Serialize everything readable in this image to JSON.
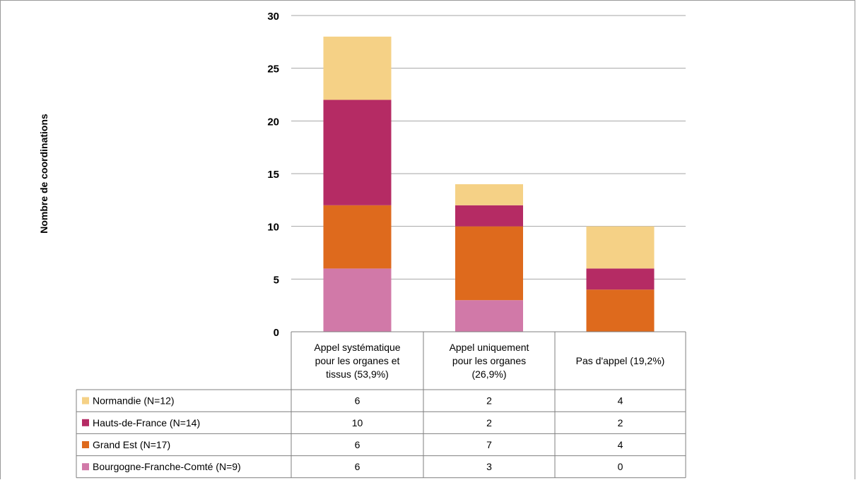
{
  "chart_data": {
    "type": "bar",
    "stacked": true,
    "ylabel": "Nombre de coordinations",
    "ylim": [
      0,
      30
    ],
    "yticks": [
      0,
      5,
      10,
      15,
      20,
      25,
      30
    ],
    "grid": true,
    "legend": "data-table",
    "categories": [
      "Appel systématique pour les organes et tissus (53,9%)",
      "Appel uniquement pour les organes (26,9%)",
      "Pas d'appel (19,2%)"
    ],
    "category_lines": [
      [
        "Appel systématique",
        "pour les organes et",
        "tissus (53,9%)"
      ],
      [
        "Appel uniquement",
        "pour les organes",
        "(26,9%)"
      ],
      [
        "Pas d'appel (19,2%)"
      ]
    ],
    "series": [
      {
        "name": "Bourgogne-Franche-Comté (N=9)",
        "color": "#d179a8",
        "values": [
          6,
          3,
          0
        ]
      },
      {
        "name": "Grand Est (N=17)",
        "color": "#de6a1d",
        "values": [
          6,
          7,
          4
        ]
      },
      {
        "name": "Hauts-de-France (N=14)",
        "color": "#b52b64",
        "values": [
          10,
          2,
          2
        ]
      },
      {
        "name": "Normandie (N=12)",
        "color": "#f5d186",
        "values": [
          6,
          2,
          4
        ]
      }
    ],
    "table_order": [
      3,
      2,
      1,
      0
    ]
  }
}
